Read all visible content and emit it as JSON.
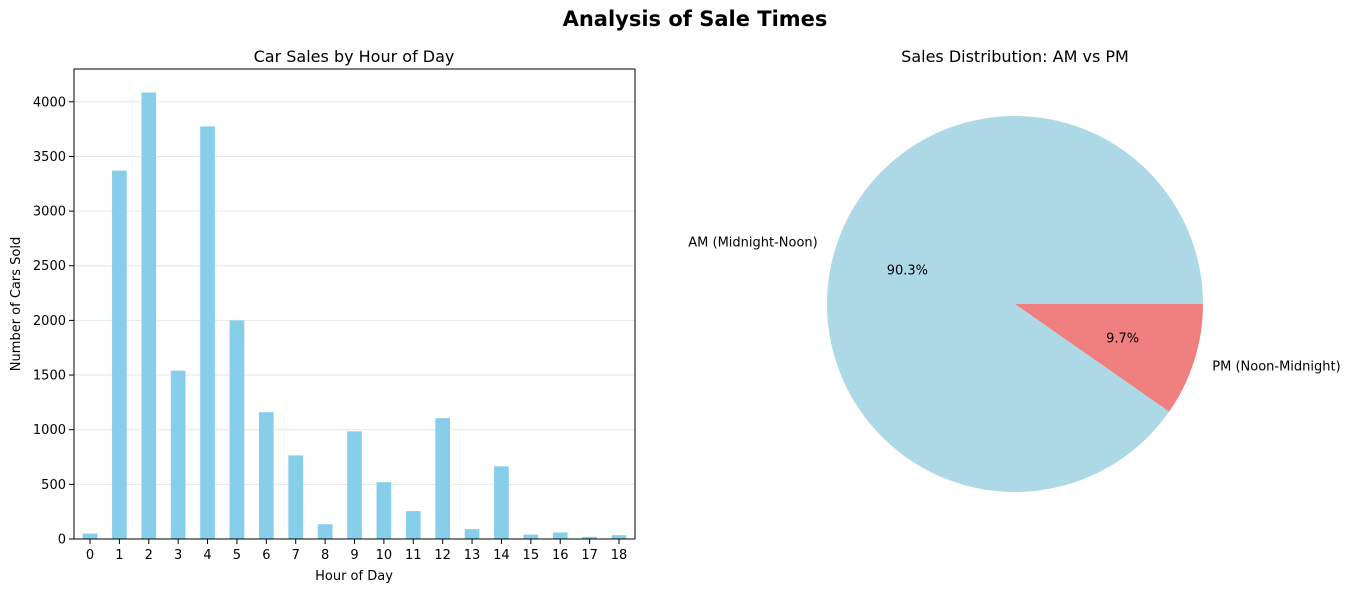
{
  "figure_title": "Analysis of Sale Times",
  "colors": {
    "bar": "#87ceeb",
    "am_slice": "#add8e6",
    "pm_slice": "#f08080",
    "grid": "#e6e6e6",
    "axis": "#000000"
  },
  "chart_data": [
    {
      "type": "bar",
      "title": "Car Sales by Hour of Day",
      "xlabel": "Hour of Day",
      "ylabel": "Number of Cars Sold",
      "categories": [
        "0",
        "1",
        "2",
        "3",
        "4",
        "5",
        "6",
        "7",
        "8",
        "9",
        "10",
        "11",
        "12",
        "13",
        "14",
        "15",
        "16",
        "17",
        "18"
      ],
      "values": [
        50,
        3370,
        4085,
        1540,
        3775,
        2000,
        1160,
        765,
        135,
        985,
        520,
        255,
        1105,
        90,
        665,
        40,
        60,
        20,
        35
      ],
      "ylim": [
        0,
        4300
      ],
      "yticks": [
        0,
        500,
        1000,
        1500,
        2000,
        2500,
        3000,
        3500,
        4000
      ],
      "grid": "y"
    },
    {
      "type": "pie",
      "title": "Sales Distribution: AM vs PM",
      "labels": [
        "AM (Midnight-Noon)",
        "PM (Noon-Midnight)"
      ],
      "values": [
        90.3,
        9.7
      ],
      "autopct": [
        "90.3%",
        "9.7%"
      ]
    }
  ]
}
